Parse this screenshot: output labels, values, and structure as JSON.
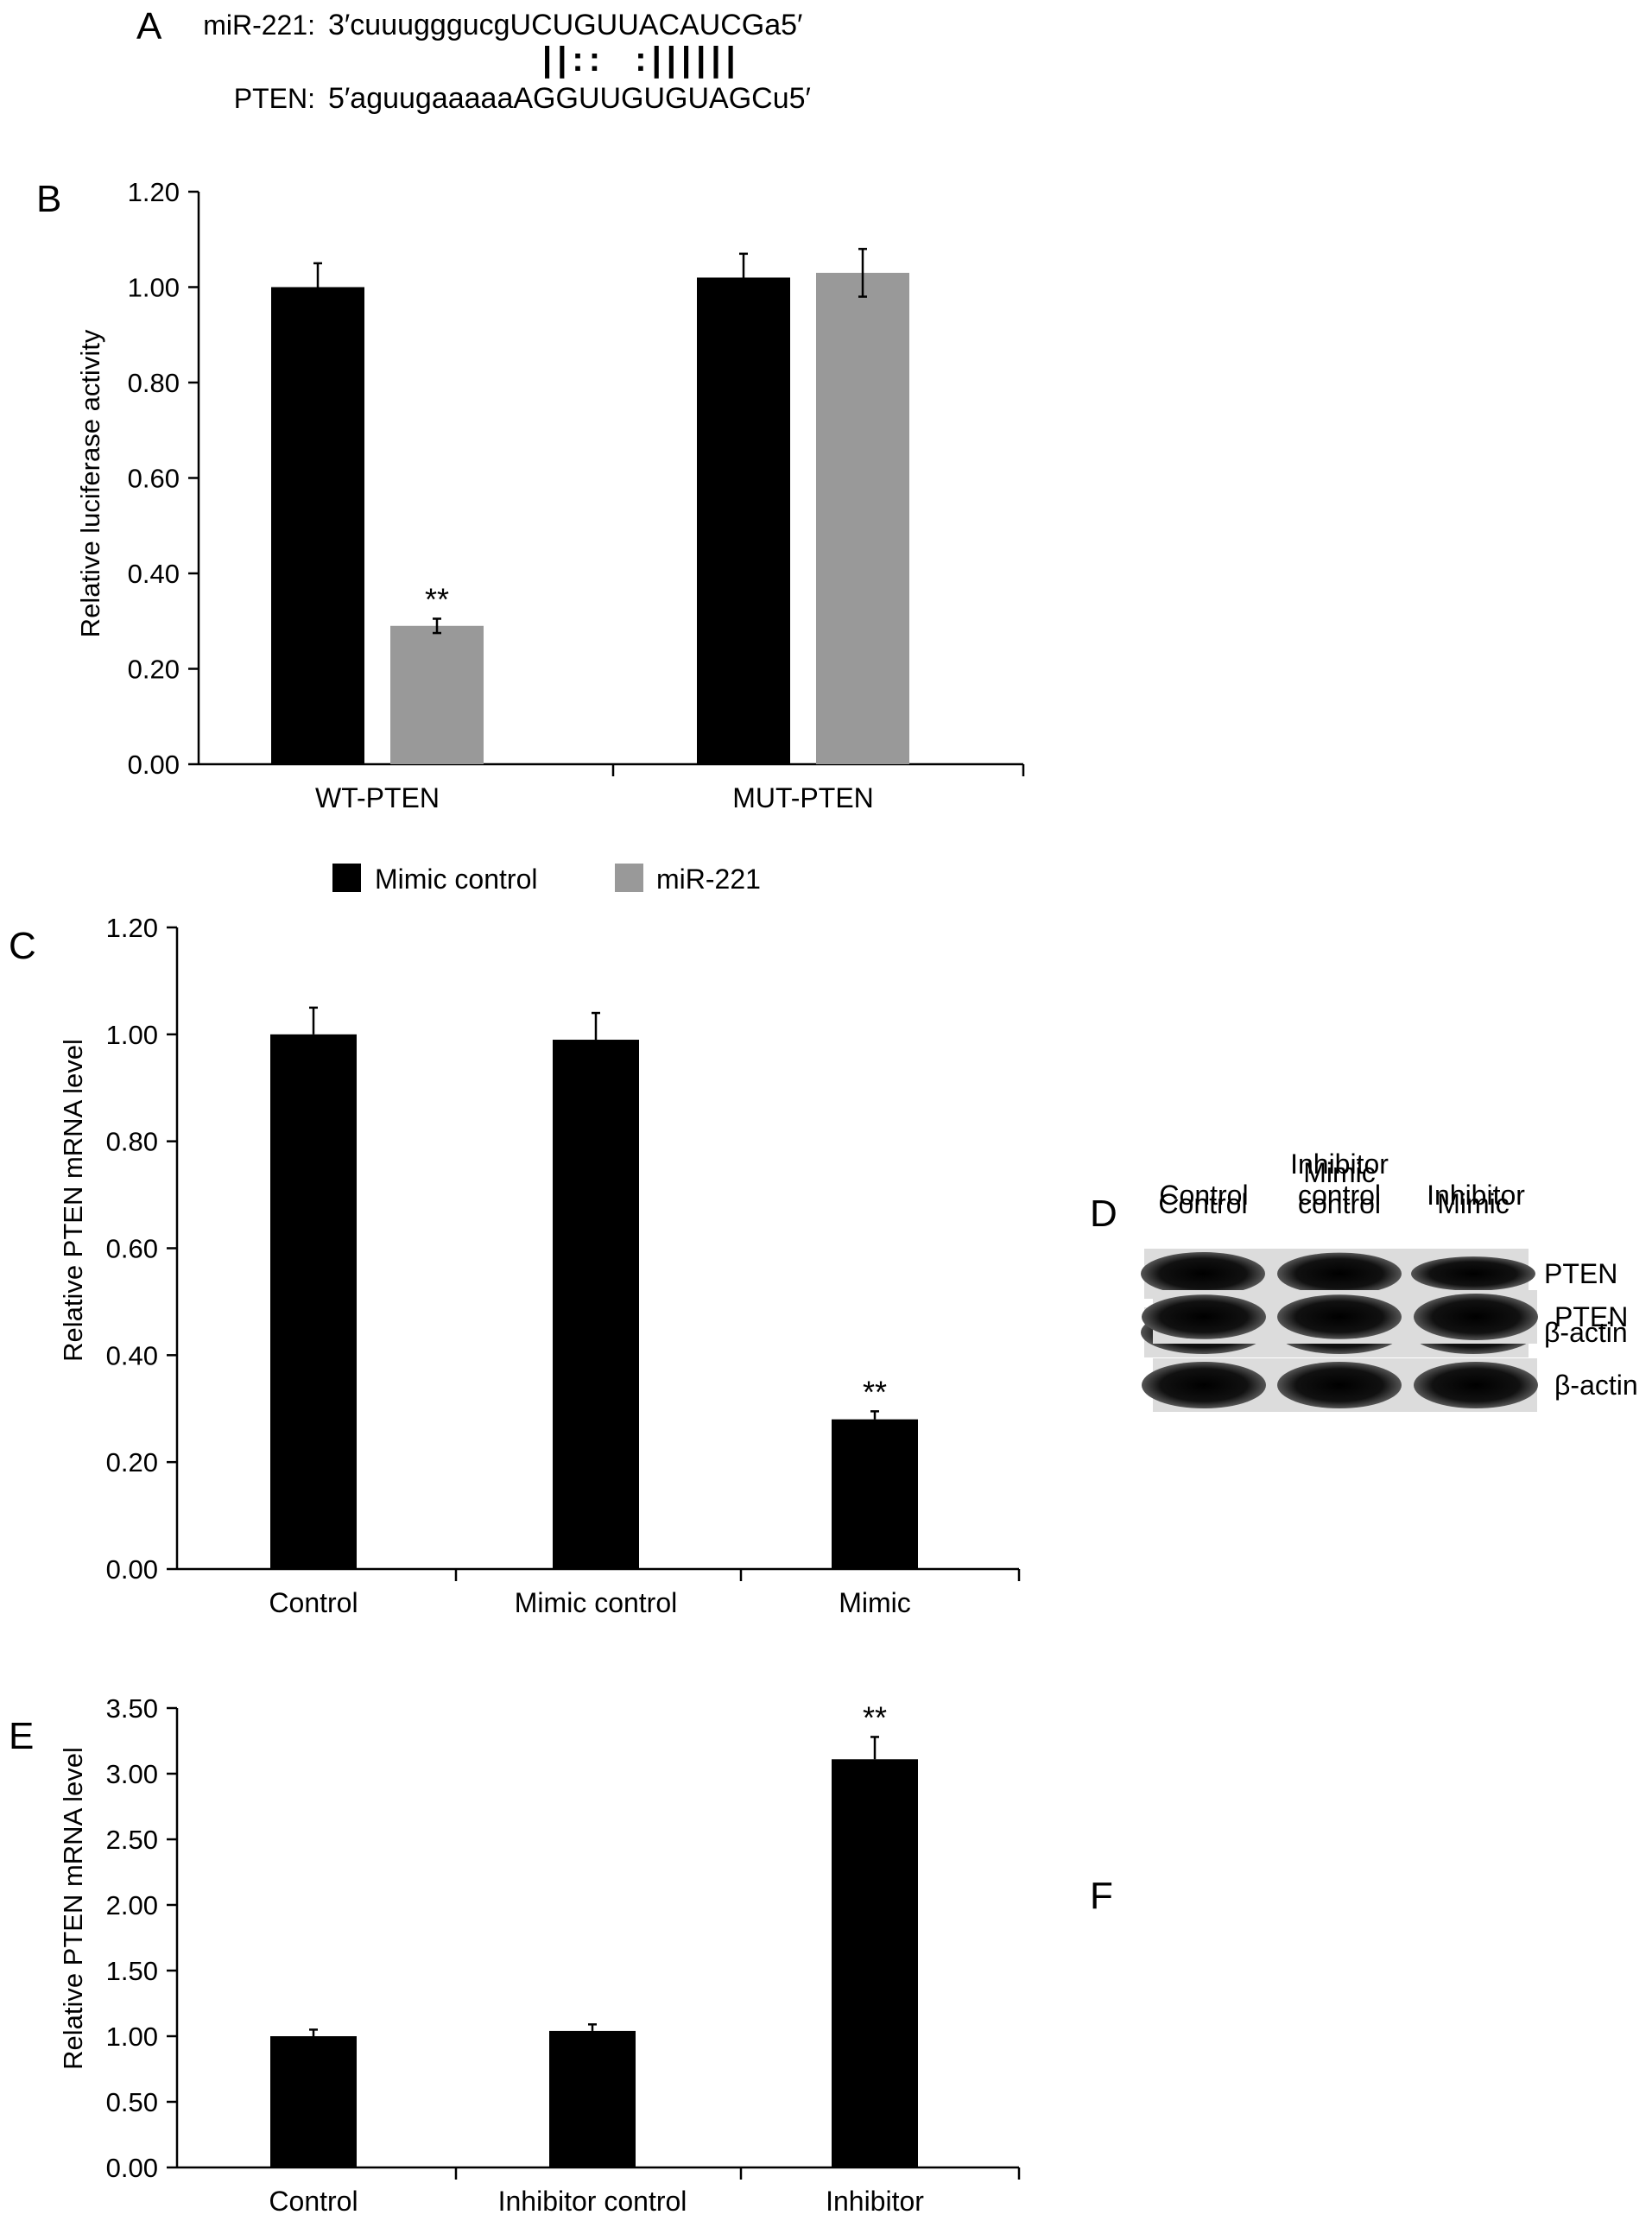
{
  "panel_a": {
    "letter": "A",
    "mir_label": "miR-221:",
    "mir_seq": "3′cuuugggucgUCUGUUACAUCGa5′",
    "pairing": "||::  :||||||",
    "pten_label": "PTEN:",
    "pten_seq": "5′aguugaaaaaAGGUUGUGUAGCu5′"
  },
  "blots": [
    {
      "letter": "D",
      "lanes": [
        "Control",
        "Mimic\ncontrol",
        "Mimic"
      ],
      "rows": [
        "PTEN",
        "β-actin"
      ],
      "intensity": [
        [
          1.0,
          0.95,
          0.55
        ],
        [
          1.0,
          1.0,
          1.0
        ]
      ]
    },
    {
      "letter": "F",
      "lanes": [
        "Control",
        "Inhibitor\ncontrol",
        "Inhibitor"
      ],
      "rows": [
        "PTEN",
        "β-actin"
      ],
      "intensity": [
        [
          0.9,
          0.9,
          1.0
        ],
        [
          1.0,
          1.0,
          1.0
        ]
      ]
    }
  ],
  "colors": {
    "black_bar": "#000000",
    "grey_bar": "#999999"
  },
  "chart_data": [
    {
      "letter": "B",
      "type": "bar",
      "ylabel": "Relative luciferase activity",
      "ylim": [
        0,
        1.2
      ],
      "yticks": [
        "0.00",
        "0.20",
        "0.40",
        "0.60",
        "0.80",
        "1.00",
        "1.20"
      ],
      "categories": [
        "WT-PTEN",
        "MUT-PTEN"
      ],
      "series": [
        {
          "name": "Mimic control",
          "values": [
            1.0,
            1.02
          ],
          "errors": [
            0.05,
            0.05
          ],
          "color": "#000000"
        },
        {
          "name": "miR-221",
          "values": [
            0.29,
            1.03
          ],
          "errors": [
            0.015,
            0.05
          ],
          "color": "#999999"
        }
      ],
      "annotations": [
        {
          "text": "**",
          "category": 0,
          "series": 1
        }
      ],
      "legend": [
        "Mimic control",
        "miR-221"
      ]
    },
    {
      "letter": "C",
      "type": "bar",
      "ylabel": "Relative PTEN mRNA level",
      "ylim": [
        0,
        1.2
      ],
      "yticks": [
        "0.00",
        "0.20",
        "0.40",
        "0.60",
        "0.80",
        "1.00",
        "1.20"
      ],
      "categories": [
        "Control",
        "Mimic control",
        "Mimic"
      ],
      "values": [
        1.0,
        0.99,
        0.28
      ],
      "errors": [
        0.05,
        0.05,
        0.015
      ],
      "annotations": [
        {
          "text": "**",
          "category": 2
        }
      ]
    },
    {
      "letter": "E",
      "type": "bar",
      "ylabel": "Relative PTEN mRNA level",
      "ylim": [
        0,
        3.5
      ],
      "yticks": [
        "0.00",
        "0.50",
        "1.00",
        "1.50",
        "2.00",
        "2.50",
        "3.00",
        "3.50"
      ],
      "categories": [
        "Control",
        "Inhibitor control",
        "Inhibitor"
      ],
      "values": [
        1.0,
        1.04,
        3.11
      ],
      "errors": [
        0.05,
        0.05,
        0.17
      ],
      "annotations": [
        {
          "text": "**",
          "category": 2
        }
      ]
    }
  ]
}
